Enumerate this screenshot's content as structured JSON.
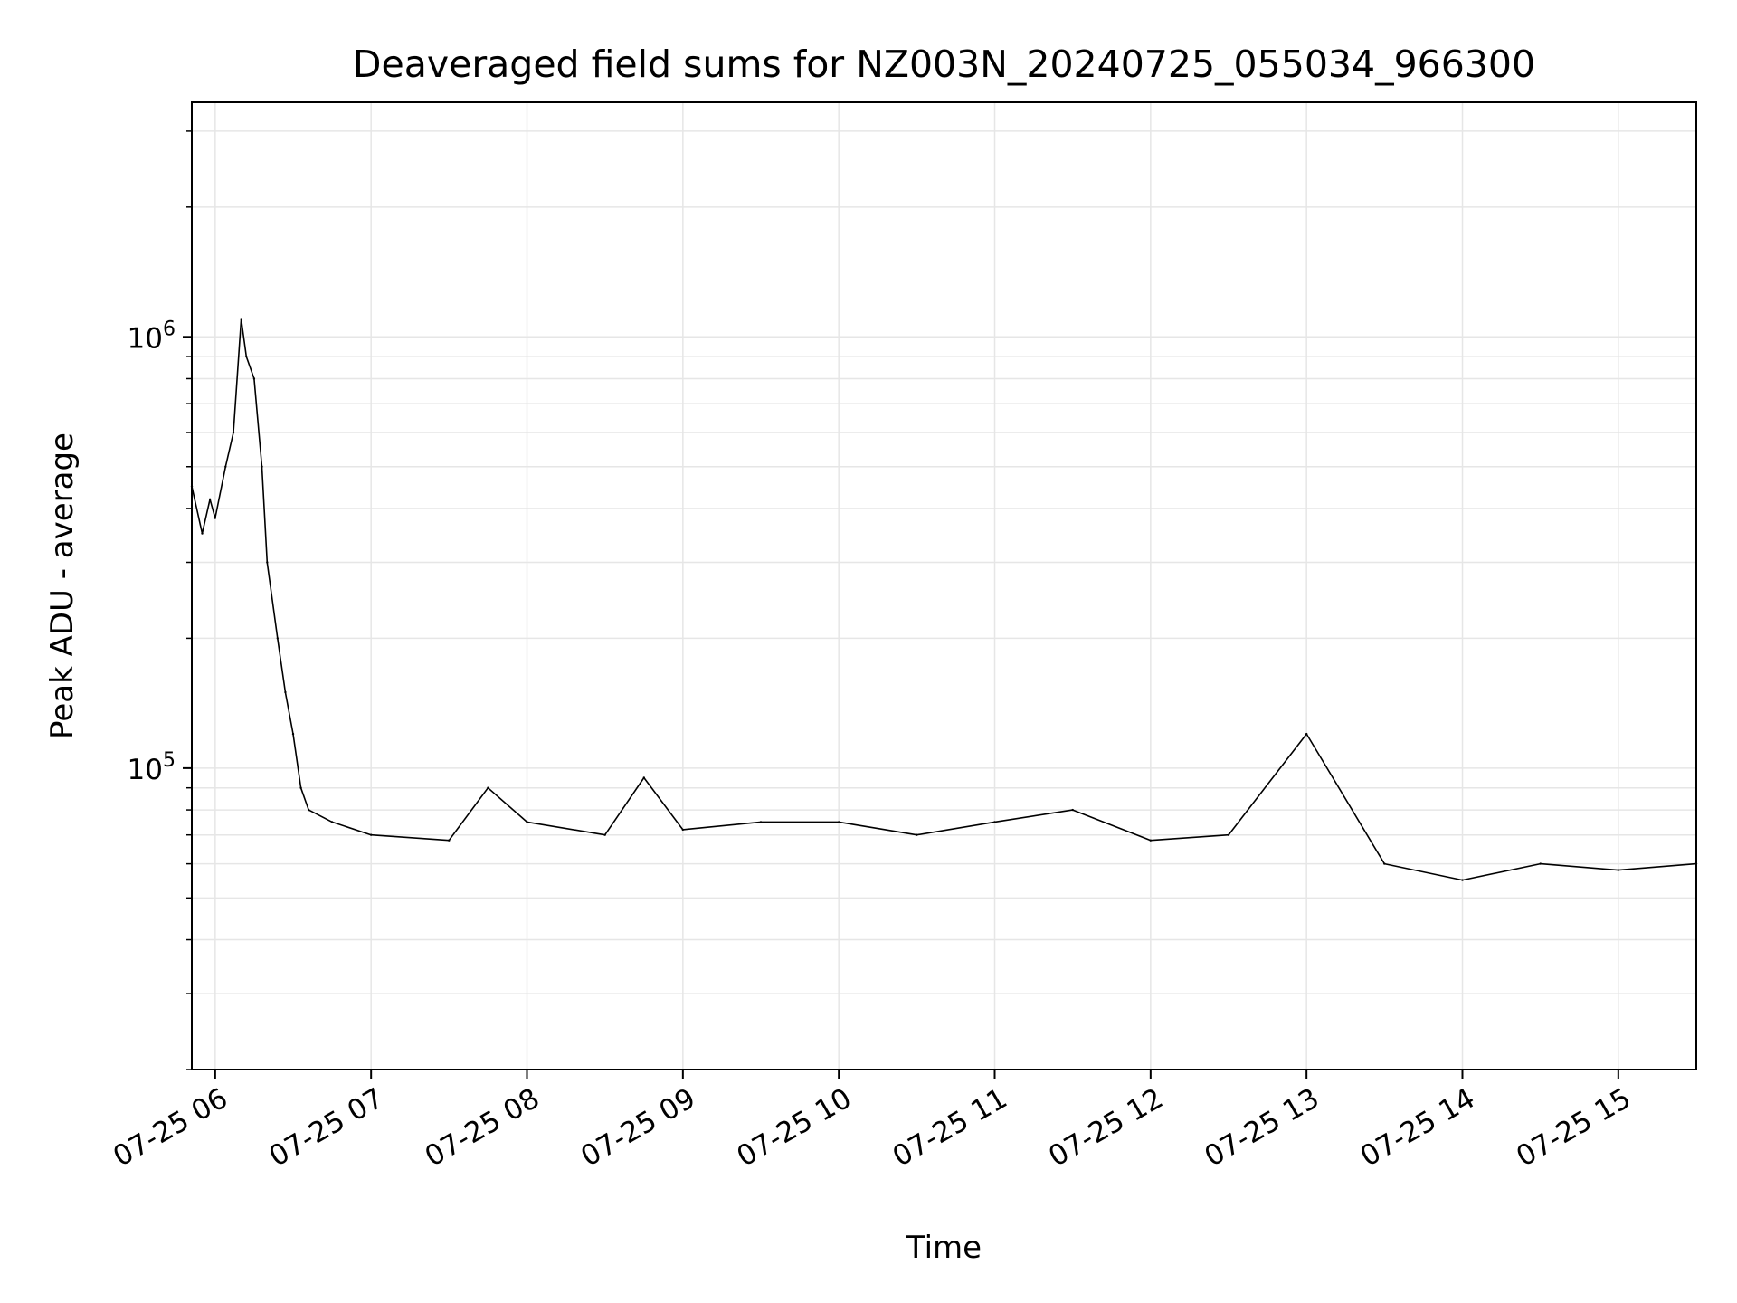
{
  "chart_data": {
    "type": "line",
    "title": "Deaveraged field sums for NZ003N_20240725_055034_966300",
    "xlabel": "Time",
    "ylabel": "Peak ADU - average",
    "xscale": "time",
    "yscale": "log",
    "xlim": [
      "2024-07-25 05:51",
      "2024-07-25 15:30"
    ],
    "ylim": [
      20000,
      3500000
    ],
    "grid": true,
    "line_color": "#000000",
    "grid_color": "#e6e6e6",
    "x_ticks": [
      "07-25 06",
      "07-25 07",
      "07-25 08",
      "07-25 09",
      "07-25 10",
      "07-25 11",
      "07-25 12",
      "07-25 13",
      "07-25 14",
      "07-25 15"
    ],
    "y_ticks": [
      {
        "base": "10",
        "exp": "5",
        "value": 100000
      },
      {
        "base": "10",
        "exp": "6",
        "value": 1000000
      }
    ],
    "series": [
      {
        "x": [
          "2024-07-25 05:51",
          "2024-07-25 05:55",
          "2024-07-25 05:58",
          "2024-07-25 06:00",
          "2024-07-25 06:04",
          "2024-07-25 06:07",
          "2024-07-25 06:10",
          "2024-07-25 06:12",
          "2024-07-25 06:15",
          "2024-07-25 06:18",
          "2024-07-25 06:20",
          "2024-07-25 06:24",
          "2024-07-25 06:27",
          "2024-07-25 06:30",
          "2024-07-25 06:33",
          "2024-07-25 06:36",
          "2024-07-25 06:45",
          "2024-07-25 07:00",
          "2024-07-25 07:30",
          "2024-07-25 07:45",
          "2024-07-25 08:00",
          "2024-07-25 08:30",
          "2024-07-25 08:45",
          "2024-07-25 09:00",
          "2024-07-25 09:30",
          "2024-07-25 10:00",
          "2024-07-25 10:30",
          "2024-07-25 11:00",
          "2024-07-25 11:30",
          "2024-07-25 12:00",
          "2024-07-25 12:30",
          "2024-07-25 13:00",
          "2024-07-25 13:30",
          "2024-07-25 14:00",
          "2024-07-25 14:30",
          "2024-07-25 15:00",
          "2024-07-25 15:30"
        ],
        "values": [
          450000,
          350000,
          420000,
          380000,
          500000,
          600000,
          1100000,
          900000,
          800000,
          500000,
          300000,
          200000,
          150000,
          120000,
          90000,
          80000,
          75000,
          70000,
          68000,
          90000,
          75000,
          70000,
          95000,
          72000,
          75000,
          75000,
          70000,
          75000,
          80000,
          68000,
          70000,
          120000,
          60000,
          55000,
          60000,
          58000,
          60000
        ]
      }
    ]
  }
}
